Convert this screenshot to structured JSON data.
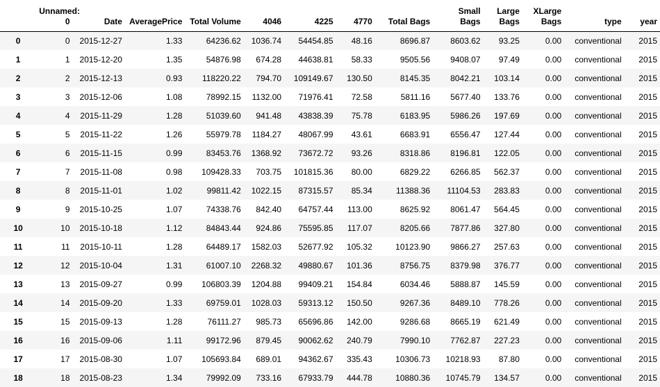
{
  "columns": [
    "",
    "Unnamed: 0",
    "Date",
    "AveragePrice",
    "Total Volume",
    "4046",
    "4225",
    "4770",
    "Total Bags",
    "Small Bags",
    "Large Bags",
    "XLarge Bags",
    "type",
    "year"
  ],
  "rows": [
    [
      "0",
      "0",
      "2015-12-27",
      "1.33",
      "64236.62",
      "1036.74",
      "54454.85",
      "48.16",
      "8696.87",
      "8603.62",
      "93.25",
      "0.00",
      "conventional",
      "2015"
    ],
    [
      "1",
      "1",
      "2015-12-20",
      "1.35",
      "54876.98",
      "674.28",
      "44638.81",
      "58.33",
      "9505.56",
      "9408.07",
      "97.49",
      "0.00",
      "conventional",
      "2015"
    ],
    [
      "2",
      "2",
      "2015-12-13",
      "0.93",
      "118220.22",
      "794.70",
      "109149.67",
      "130.50",
      "8145.35",
      "8042.21",
      "103.14",
      "0.00",
      "conventional",
      "2015"
    ],
    [
      "3",
      "3",
      "2015-12-06",
      "1.08",
      "78992.15",
      "1132.00",
      "71976.41",
      "72.58",
      "5811.16",
      "5677.40",
      "133.76",
      "0.00",
      "conventional",
      "2015"
    ],
    [
      "4",
      "4",
      "2015-11-29",
      "1.28",
      "51039.60",
      "941.48",
      "43838.39",
      "75.78",
      "6183.95",
      "5986.26",
      "197.69",
      "0.00",
      "conventional",
      "2015"
    ],
    [
      "5",
      "5",
      "2015-11-22",
      "1.26",
      "55979.78",
      "1184.27",
      "48067.99",
      "43.61",
      "6683.91",
      "6556.47",
      "127.44",
      "0.00",
      "conventional",
      "2015"
    ],
    [
      "6",
      "6",
      "2015-11-15",
      "0.99",
      "83453.76",
      "1368.92",
      "73672.72",
      "93.26",
      "8318.86",
      "8196.81",
      "122.05",
      "0.00",
      "conventional",
      "2015"
    ],
    [
      "7",
      "7",
      "2015-11-08",
      "0.98",
      "109428.33",
      "703.75",
      "101815.36",
      "80.00",
      "6829.22",
      "6266.85",
      "562.37",
      "0.00",
      "conventional",
      "2015"
    ],
    [
      "8",
      "8",
      "2015-11-01",
      "1.02",
      "99811.42",
      "1022.15",
      "87315.57",
      "85.34",
      "11388.36",
      "11104.53",
      "283.83",
      "0.00",
      "conventional",
      "2015"
    ],
    [
      "9",
      "9",
      "2015-10-25",
      "1.07",
      "74338.76",
      "842.40",
      "64757.44",
      "113.00",
      "8625.92",
      "8061.47",
      "564.45",
      "0.00",
      "conventional",
      "2015"
    ],
    [
      "10",
      "10",
      "2015-10-18",
      "1.12",
      "84843.44",
      "924.86",
      "75595.85",
      "117.07",
      "8205.66",
      "7877.86",
      "327.80",
      "0.00",
      "conventional",
      "2015"
    ],
    [
      "11",
      "11",
      "2015-10-11",
      "1.28",
      "64489.17",
      "1582.03",
      "52677.92",
      "105.32",
      "10123.90",
      "9866.27",
      "257.63",
      "0.00",
      "conventional",
      "2015"
    ],
    [
      "12",
      "12",
      "2015-10-04",
      "1.31",
      "61007.10",
      "2268.32",
      "49880.67",
      "101.36",
      "8756.75",
      "8379.98",
      "376.77",
      "0.00",
      "conventional",
      "2015"
    ],
    [
      "13",
      "13",
      "2015-09-27",
      "0.99",
      "106803.39",
      "1204.88",
      "99409.21",
      "154.84",
      "6034.46",
      "5888.87",
      "145.59",
      "0.00",
      "conventional",
      "2015"
    ],
    [
      "14",
      "14",
      "2015-09-20",
      "1.33",
      "69759.01",
      "1028.03",
      "59313.12",
      "150.50",
      "9267.36",
      "8489.10",
      "778.26",
      "0.00",
      "conventional",
      "2015"
    ],
    [
      "15",
      "15",
      "2015-09-13",
      "1.28",
      "76111.27",
      "985.73",
      "65696.86",
      "142.00",
      "9286.68",
      "8665.19",
      "621.49",
      "0.00",
      "conventional",
      "2015"
    ],
    [
      "16",
      "16",
      "2015-09-06",
      "1.11",
      "99172.96",
      "879.45",
      "90062.62",
      "240.79",
      "7990.10",
      "7762.87",
      "227.23",
      "0.00",
      "conventional",
      "2015"
    ],
    [
      "17",
      "17",
      "2015-08-30",
      "1.07",
      "105693.84",
      "689.01",
      "94362.67",
      "335.43",
      "10306.73",
      "10218.93",
      "87.80",
      "0.00",
      "conventional",
      "2015"
    ],
    [
      "18",
      "18",
      "2015-08-23",
      "1.34",
      "79992.09",
      "733.16",
      "67933.79",
      "444.78",
      "10880.36",
      "10745.79",
      "134.57",
      "0.00",
      "conventional",
      "2015"
    ]
  ]
}
